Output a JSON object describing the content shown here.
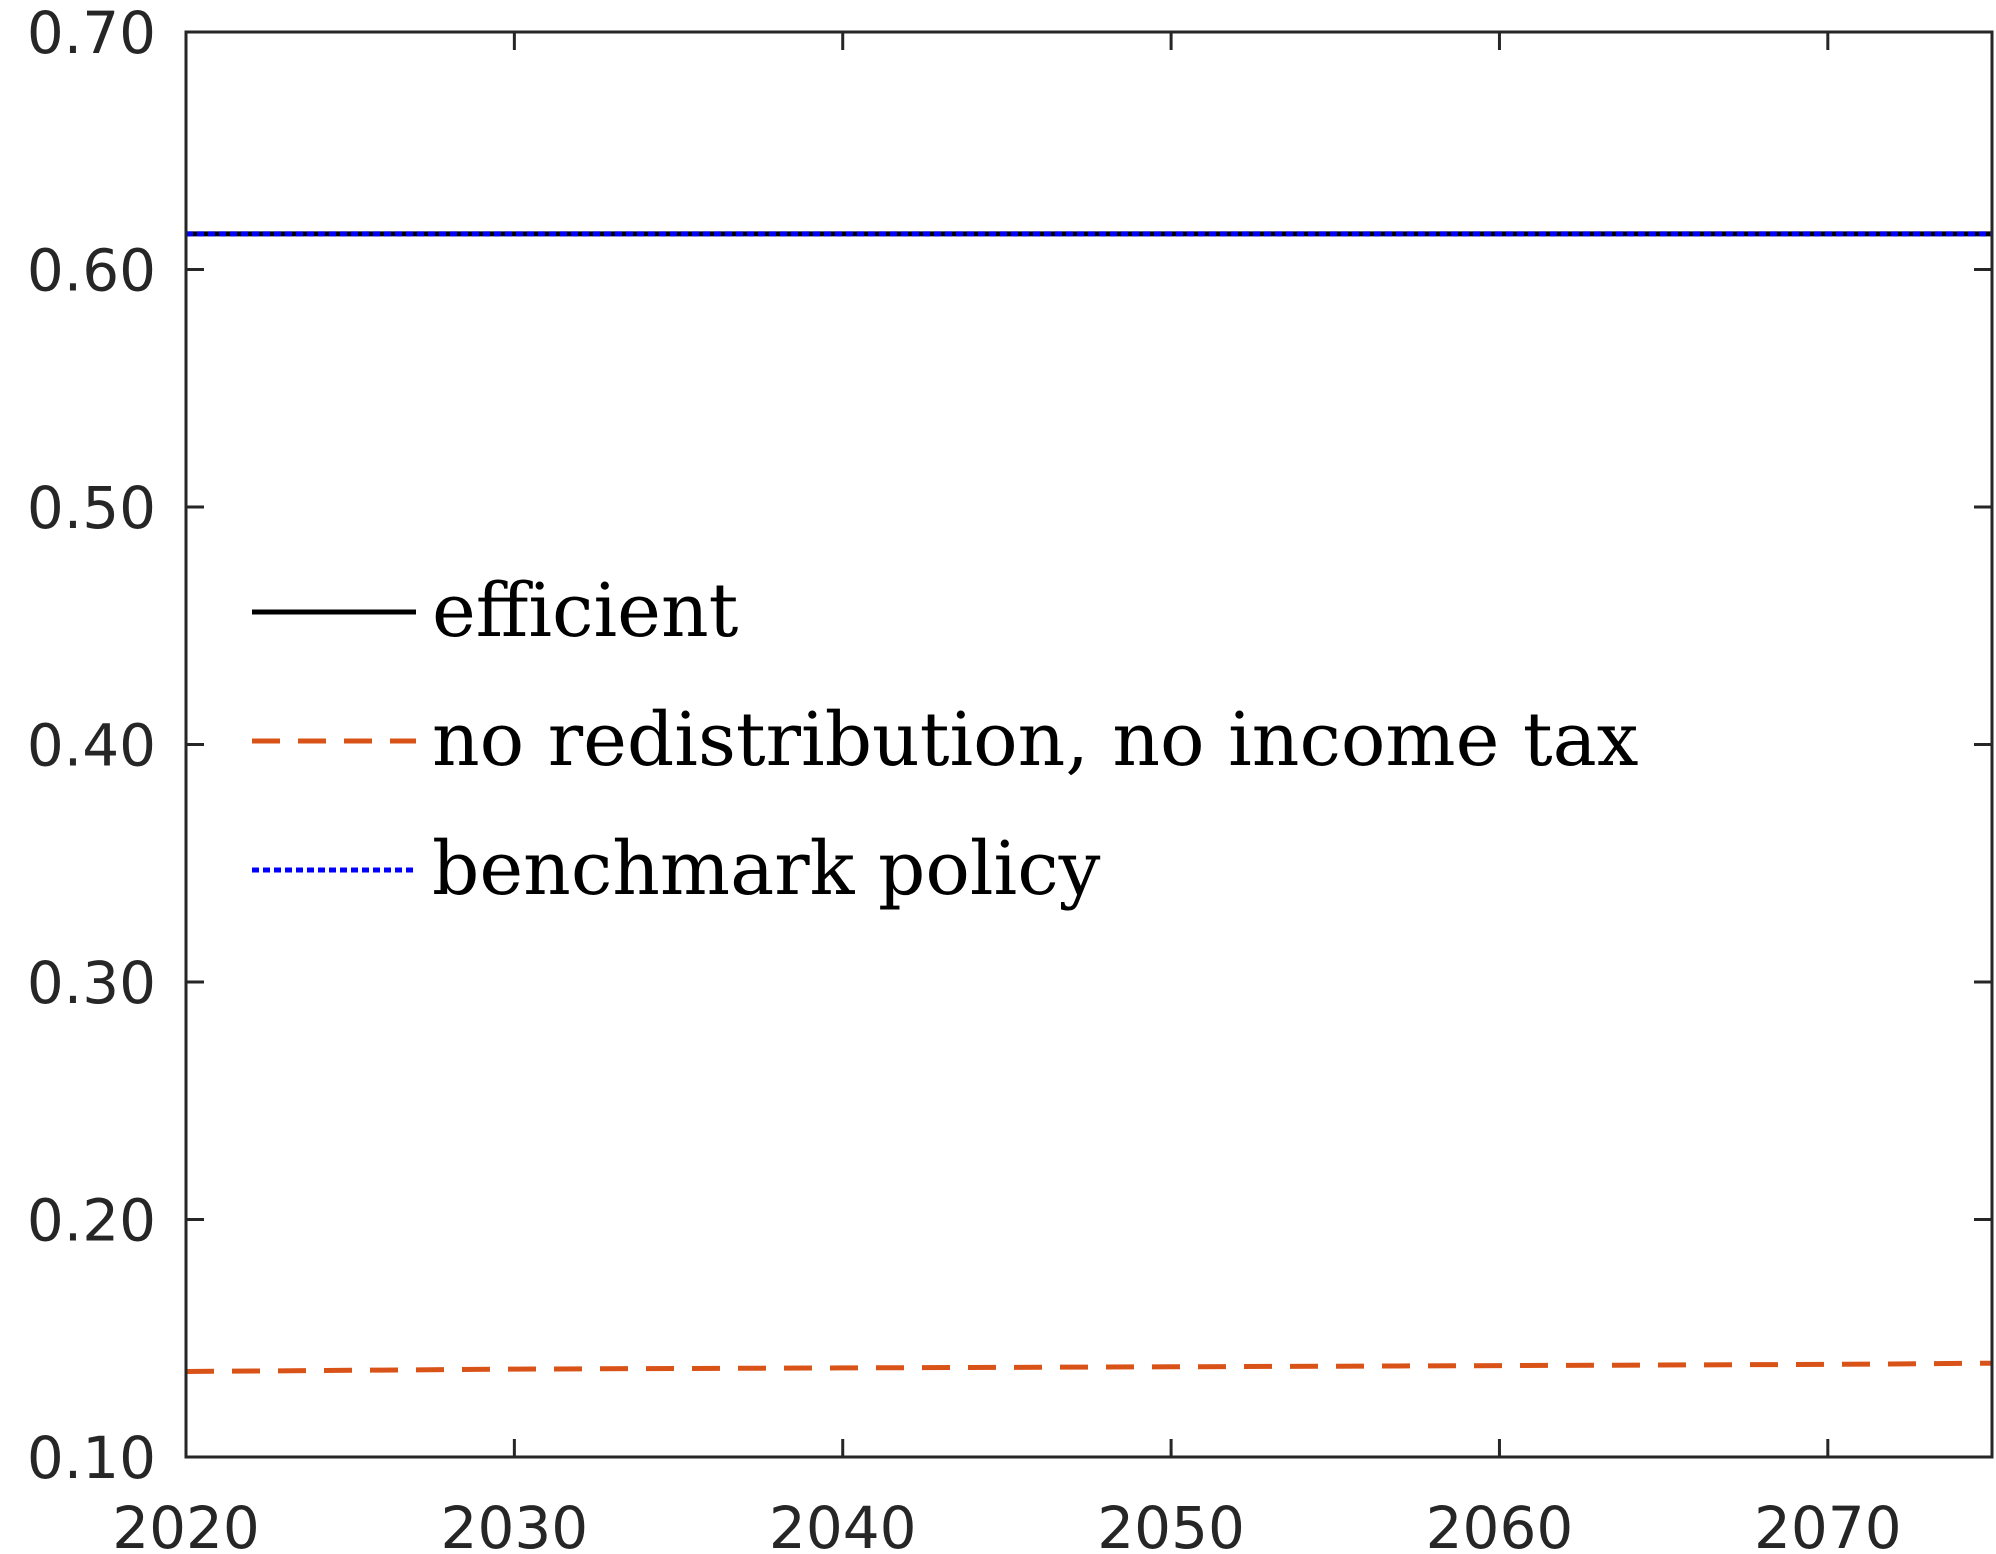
{
  "chart_data": {
    "type": "line",
    "title": "",
    "xlabel": "",
    "ylabel": "",
    "xlim": [
      2020,
      2075
    ],
    "ylim": [
      0.1,
      0.7
    ],
    "x_ticks": [
      2020,
      2030,
      2040,
      2050,
      2060,
      2070
    ],
    "x_tick_labels": [
      "2020",
      "2030",
      "2040",
      "2050",
      "2060",
      "2070"
    ],
    "y_ticks": [
      0.1,
      0.2,
      0.3,
      0.4,
      0.5,
      0.6,
      0.7
    ],
    "y_tick_labels": [
      "0.10",
      "0.20",
      "0.30",
      "0.40",
      "0.50",
      "0.60",
      "0.70"
    ],
    "grid": false,
    "legend_position": "middle-left",
    "series": [
      {
        "name": "efficient",
        "color": "#000000",
        "style": "solid",
        "x": [
          2020,
          2030,
          2040,
          2050,
          2060,
          2070,
          2075
        ],
        "y": [
          0.615,
          0.615,
          0.615,
          0.615,
          0.615,
          0.615,
          0.615
        ]
      },
      {
        "name": "no redistribution, no income tax",
        "color": "#D95319",
        "style": "dashed",
        "x": [
          2020,
          2030,
          2040,
          2050,
          2060,
          2070,
          2075
        ],
        "y": [
          0.136,
          0.137,
          0.1375,
          0.138,
          0.1385,
          0.139,
          0.1395
        ]
      },
      {
        "name": "benchmark policy",
        "color": "#0000FF",
        "style": "dotted",
        "x": [
          2020,
          2030,
          2040,
          2050,
          2060,
          2070,
          2075
        ],
        "y": [
          0.615,
          0.615,
          0.615,
          0.615,
          0.615,
          0.615,
          0.615
        ]
      }
    ]
  }
}
